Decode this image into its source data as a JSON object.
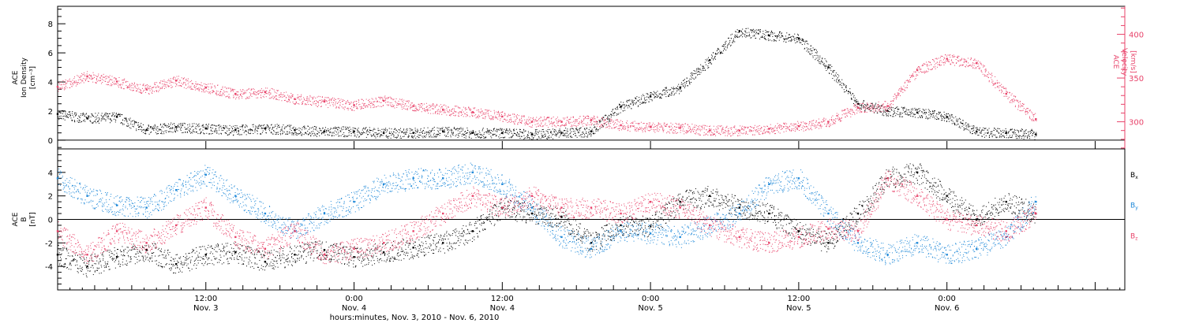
{
  "chart_data": [
    {
      "type": "scatter",
      "ylabel_lines": [
        "ACE",
        "Ion Density",
        "[cm⁻³]"
      ],
      "ylim": [
        -0.6,
        9.2
      ],
      "yticks": [
        0,
        2,
        4,
        6,
        8
      ],
      "right_axis": {
        "label_lines": [
          "ACE",
          "Velocity",
          "[km/s]"
        ],
        "ylim": [
          269,
          432
        ],
        "yticks": [
          300,
          350,
          400
        ],
        "color": "#e8436a"
      },
      "series": [
        {
          "name": "Density",
          "axis": "left",
          "color": "#000000",
          "x": [
            0,
            0.1,
            0.2,
            0.3,
            0.4,
            0.5,
            0.6,
            0.7,
            0.8,
            0.9,
            1.0,
            1.1,
            1.2,
            1.3,
            1.4,
            1.5,
            1.6,
            1.7,
            1.8,
            1.9,
            2.0,
            2.1,
            2.2,
            2.3,
            2.4,
            2.5,
            2.6,
            2.7,
            2.8,
            2.9,
            3.0,
            3.1,
            3.2,
            3.3
          ],
          "y": [
            1.8,
            1.5,
            1.6,
            0.7,
            0.9,
            0.8,
            0.7,
            0.8,
            0.7,
            0.6,
            0.6,
            0.5,
            0.5,
            0.6,
            0.5,
            0.5,
            0.4,
            0.5,
            0.6,
            2.3,
            3.0,
            3.6,
            5.5,
            7.5,
            7.2,
            7.0,
            5.0,
            2.5,
            2.0,
            1.9,
            1.6,
            0.6,
            0.5,
            0.4
          ]
        },
        {
          "name": "Velocity",
          "axis": "right",
          "color": "#e8436a",
          "x": [
            0,
            0.1,
            0.2,
            0.3,
            0.4,
            0.5,
            0.6,
            0.7,
            0.8,
            0.9,
            1.0,
            1.1,
            1.2,
            1.3,
            1.4,
            1.5,
            1.6,
            1.7,
            1.8,
            1.9,
            2.0,
            2.1,
            2.2,
            2.3,
            2.4,
            2.5,
            2.6,
            2.7,
            2.8,
            2.9,
            3.0,
            3.1,
            3.2,
            3.3
          ],
          "y": [
            340,
            352,
            346,
            337,
            347,
            339,
            332,
            334,
            326,
            323,
            319,
            324,
            318,
            314,
            311,
            306,
            300,
            300,
            302,
            296,
            294,
            293,
            290,
            290,
            292,
            295,
            300,
            316,
            318,
            359,
            372,
            367,
            332,
            303
          ]
        }
      ]
    },
    {
      "type": "scatter",
      "ylabel_lines": [
        "ACE",
        "B",
        "[nT]"
      ],
      "ylim": [
        -6.0,
        6.0
      ],
      "yticks": [
        -4,
        -2,
        0,
        2,
        4
      ],
      "legend_position": "right",
      "series": [
        {
          "name": "Bx",
          "color": "#000000",
          "x": [
            0,
            0.1,
            0.2,
            0.3,
            0.4,
            0.5,
            0.6,
            0.7,
            0.8,
            0.9,
            1.0,
            1.1,
            1.2,
            1.3,
            1.4,
            1.5,
            1.6,
            1.7,
            1.8,
            1.9,
            2.0,
            2.1,
            2.2,
            2.3,
            2.4,
            2.5,
            2.6,
            2.7,
            2.8,
            2.9,
            3.0,
            3.1,
            3.2,
            3.3
          ],
          "y": [
            -3.0,
            -4.0,
            -3.2,
            -2.6,
            -3.8,
            -3.0,
            -2.8,
            -3.6,
            -3.0,
            -2.6,
            -3.2,
            -2.8,
            -2.4,
            -2.0,
            -1.0,
            1.0,
            0.5,
            0.2,
            -2.0,
            -0.5,
            -0.6,
            1.5,
            2.0,
            1.0,
            0.5,
            -1.0,
            -2.0,
            0.5,
            3.5,
            4.0,
            2.0,
            0.0,
            1.5,
            0.5
          ]
        },
        {
          "name": "By",
          "color": "#1e88d8",
          "x": [
            0,
            0.1,
            0.2,
            0.3,
            0.4,
            0.5,
            0.6,
            0.7,
            0.8,
            0.9,
            1.0,
            1.1,
            1.2,
            1.3,
            1.4,
            1.5,
            1.6,
            1.7,
            1.8,
            1.9,
            2.0,
            2.1,
            2.2,
            2.3,
            2.4,
            2.5,
            2.6,
            2.7,
            2.8,
            2.9,
            3.0,
            3.1,
            3.2,
            3.3
          ],
          "y": [
            3.5,
            2.0,
            1.2,
            1.0,
            2.5,
            3.8,
            2.0,
            0.5,
            -1.0,
            0.5,
            1.5,
            3.0,
            3.5,
            3.5,
            4.0,
            3.0,
            1.0,
            -1.5,
            -2.5,
            -1.0,
            -1.2,
            -1.5,
            -0.5,
            0.5,
            3.0,
            3.5,
            0.5,
            -2.0,
            -3.0,
            -2.0,
            -3.0,
            -2.5,
            -1.5,
            1.5
          ]
        },
        {
          "name": "Bz",
          "color": "#e8436a",
          "x": [
            0,
            0.1,
            0.2,
            0.3,
            0.4,
            0.5,
            0.6,
            0.7,
            0.8,
            0.9,
            1.0,
            1.1,
            1.2,
            1.3,
            1.4,
            1.5,
            1.6,
            1.7,
            1.8,
            1.9,
            2.0,
            2.1,
            2.2,
            2.3,
            2.4,
            2.5,
            2.6,
            2.7,
            2.8,
            2.9,
            3.0,
            3.1,
            3.2,
            3.3
          ],
          "y": [
            -1.0,
            -3.0,
            -1.0,
            -2.0,
            -0.5,
            1.0,
            -1.5,
            -2.5,
            -1.0,
            -3.0,
            -2.5,
            -2.0,
            -1.0,
            0.5,
            2.0,
            1.0,
            2.0,
            1.0,
            1.0,
            0.5,
            1.5,
            1.0,
            -0.5,
            -1.5,
            -2.0,
            -1.5,
            -0.8,
            -1.0,
            3.5,
            2.0,
            0.0,
            -0.5,
            -1.0,
            0.5
          ]
        }
      ]
    }
  ],
  "legend": [
    "Bx",
    "By",
    "Bz"
  ],
  "x_axis": {
    "tick_labels": [
      {
        "t": 0.5,
        "time": "12:00",
        "date": "Nov. 3"
      },
      {
        "t": 1.0,
        "time": "0:00",
        "date": "Nov. 4"
      },
      {
        "t": 1.5,
        "time": "12:00",
        "date": "Nov. 4"
      },
      {
        "t": 2.0,
        "time": "0:00",
        "date": "Nov. 5"
      },
      {
        "t": 2.5,
        "time": "12:00",
        "date": "Nov. 5"
      },
      {
        "t": 3.0,
        "time": "0:00",
        "date": "Nov. 6"
      }
    ],
    "xlim_days": [
      0.0,
      3.6
    ],
    "xlabel": "hours:minutes, Nov.  3, 2010 - Nov.  6, 2010"
  }
}
